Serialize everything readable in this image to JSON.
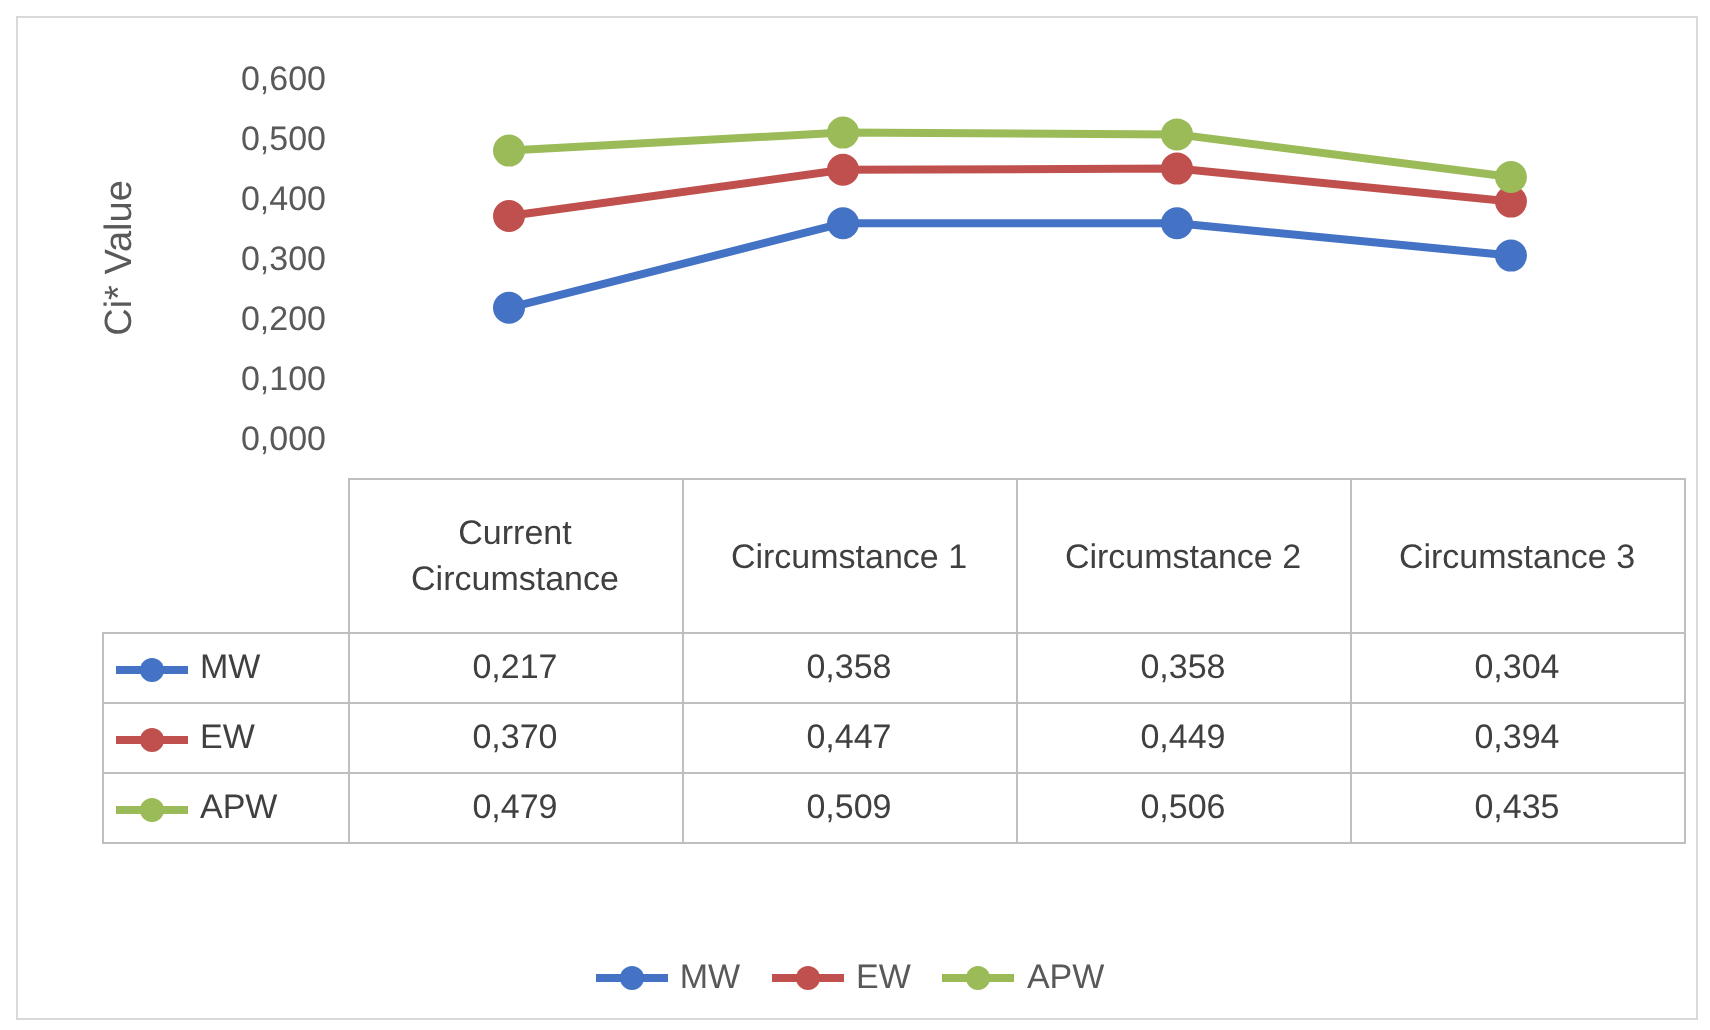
{
  "chart_data": {
    "type": "line",
    "ylabel": "Ci* Value",
    "categories": [
      "Current Circumstance",
      "Circumstance 1",
      "Circumstance 2",
      "Circumstance 3"
    ],
    "series": [
      {
        "name": "MW",
        "color": "#4472c4",
        "values": [
          0.217,
          0.358,
          0.358,
          0.304
        ],
        "value_labels": [
          "0,217",
          "0,358",
          "0,358",
          "0,304"
        ]
      },
      {
        "name": "EW",
        "color": "#c0504d",
        "values": [
          0.37,
          0.447,
          0.449,
          0.394
        ],
        "value_labels": [
          "0,370",
          "0,447",
          "0,449",
          "0,394"
        ]
      },
      {
        "name": "APW",
        "color": "#9bbb59",
        "values": [
          0.479,
          0.509,
          0.506,
          0.435
        ],
        "value_labels": [
          "0,479",
          "0,509",
          "0,506",
          "0,435"
        ]
      }
    ],
    "ylim": [
      0,
      0.6
    ],
    "yticks": [
      {
        "value": 0,
        "label": "0,000"
      },
      {
        "value": 0.1,
        "label": "0,100"
      },
      {
        "value": 0.2,
        "label": "0,200"
      },
      {
        "value": 0.3,
        "label": "0,300"
      },
      {
        "value": 0.4,
        "label": "0,400"
      },
      {
        "value": 0.5,
        "label": "0,500"
      },
      {
        "value": 0.6,
        "label": "0,600"
      }
    ],
    "grid": false,
    "legend": "bottom",
    "marker": "circle",
    "line_style": "solid"
  }
}
